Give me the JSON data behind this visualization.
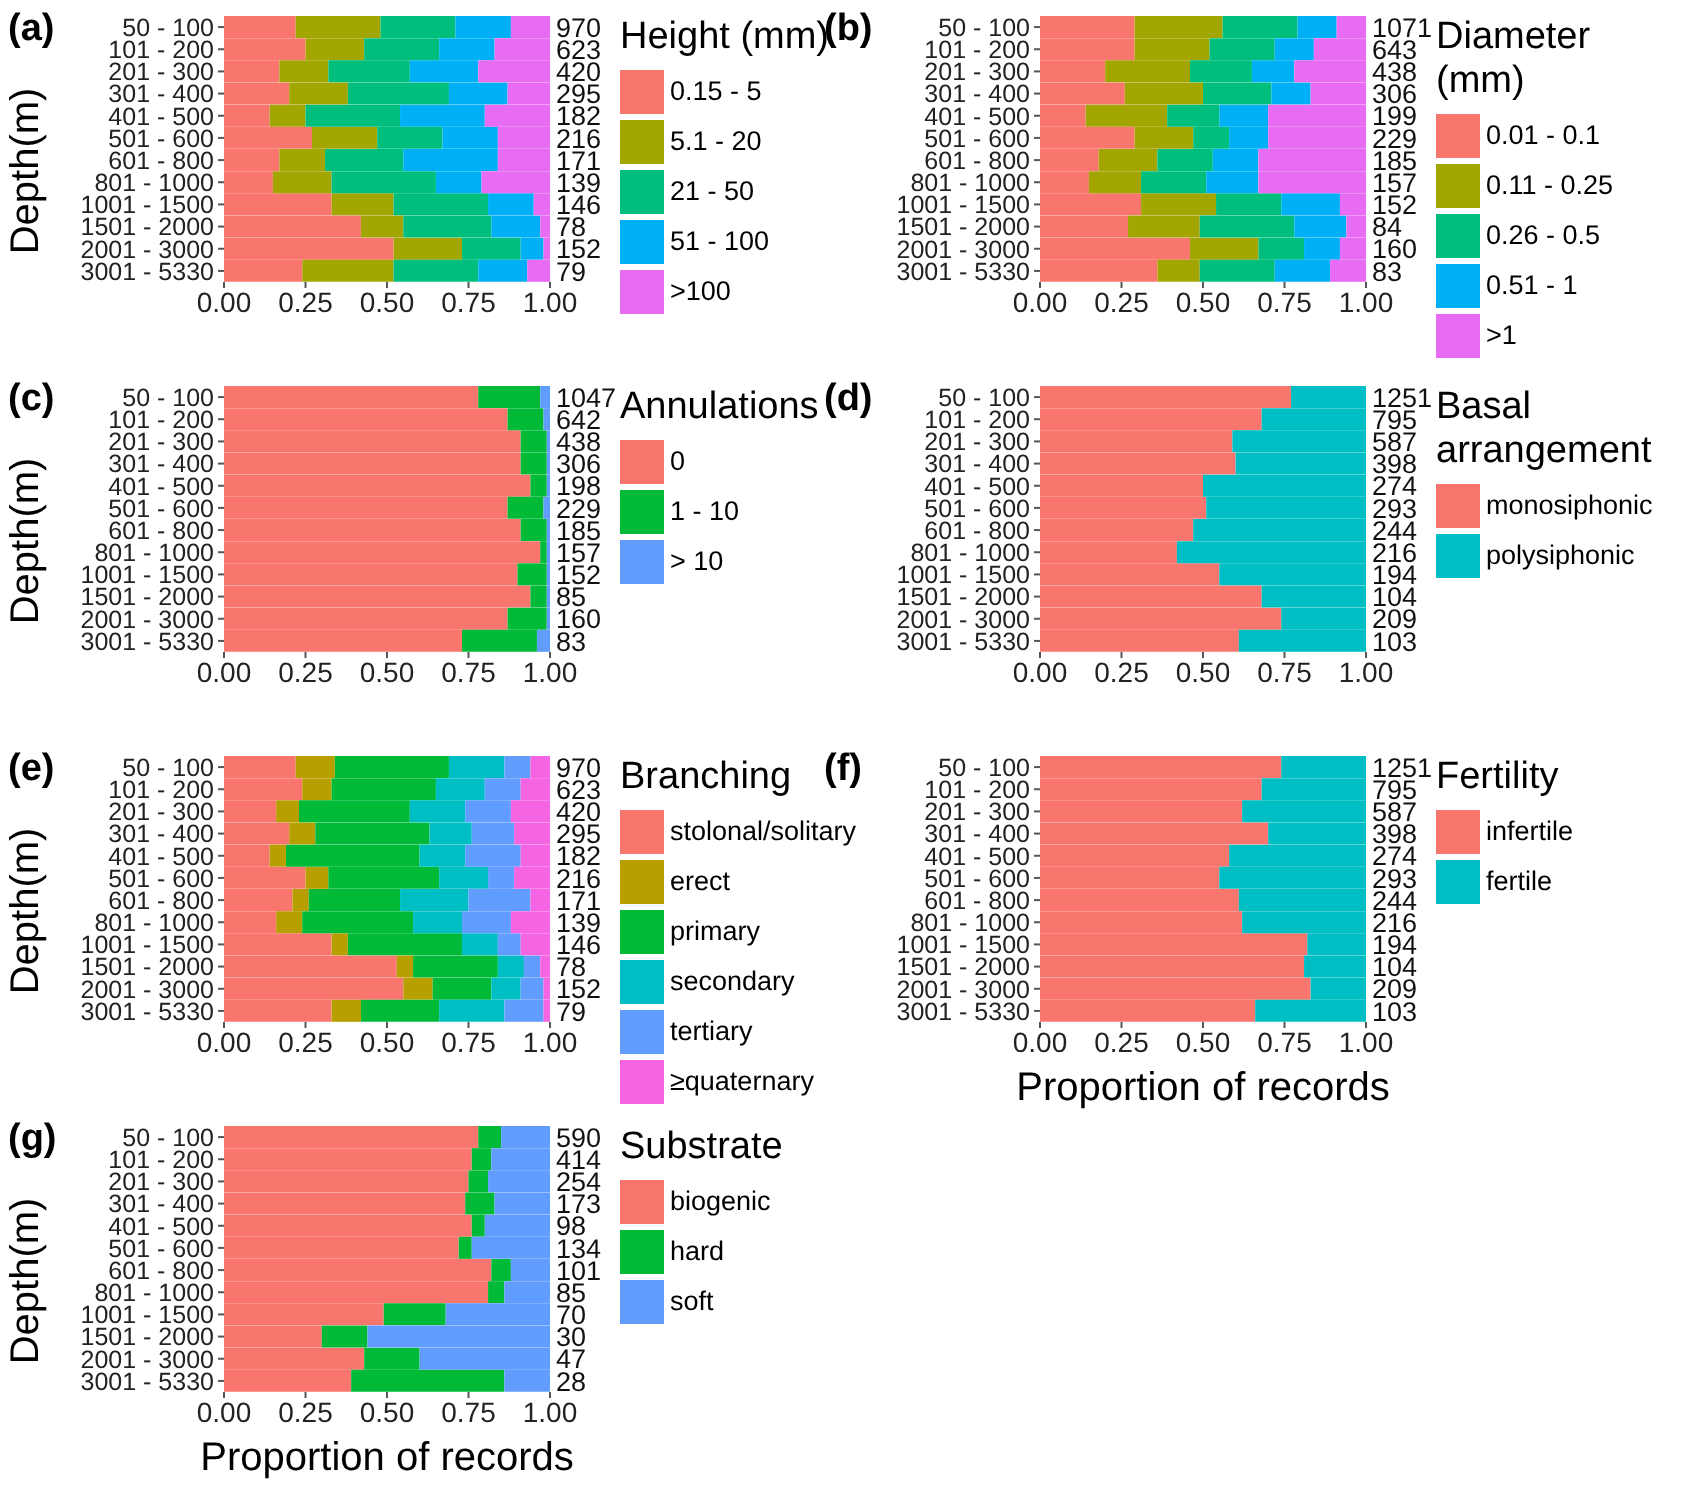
{
  "chart_data": [
    {
      "type": "bar",
      "orientation": "horizontal",
      "stacked": true,
      "title": "(a)",
      "ylabel": "Depth(m)",
      "legend_title": "Height (mm)",
      "legend": "right",
      "categories": [
        "50 - 100",
        "101 - 200",
        "201 - 300",
        "301 - 400",
        "401 - 500",
        "501 - 600",
        "601 - 800",
        "801 - 1000",
        "1001 - 1500",
        "1501 - 2000",
        "2001 - 3000",
        "3001 - 5330"
      ],
      "xlim": [
        0,
        1
      ],
      "xticks": [
        {
          "value": 0,
          "label": "0.00"
        },
        {
          "value": 0.25,
          "label": "0.25"
        },
        {
          "value": 0.5,
          "label": "0.50"
        },
        {
          "value": 0.75,
          "label": "0.75"
        },
        {
          "value": 1,
          "label": "1.00"
        }
      ],
      "annotations": [
        "970",
        "623",
        "420",
        "295",
        "182",
        "216",
        "171",
        "139",
        "146",
        "78",
        "152",
        "79"
      ],
      "series": [
        {
          "name": "0.15 - 5",
          "color": "#f8766d",
          "values": [
            0.22,
            0.25,
            0.17,
            0.2,
            0.14,
            0.27,
            0.17,
            0.15,
            0.33,
            0.42,
            0.52,
            0.24
          ]
        },
        {
          "name": "5.1 - 20",
          "color": "#a3a500",
          "values": [
            0.26,
            0.18,
            0.15,
            0.18,
            0.11,
            0.2,
            0.14,
            0.18,
            0.19,
            0.13,
            0.21,
            0.28
          ]
        },
        {
          "name": "21 - 50",
          "color": "#00bf7d",
          "values": [
            0.23,
            0.23,
            0.25,
            0.31,
            0.29,
            0.2,
            0.24,
            0.32,
            0.29,
            0.27,
            0.18,
            0.26
          ]
        },
        {
          "name": "51 - 100",
          "color": "#00b0f6",
          "values": [
            0.17,
            0.17,
            0.21,
            0.18,
            0.26,
            0.17,
            0.29,
            0.14,
            0.14,
            0.15,
            0.07,
            0.15
          ]
        },
        {
          "name": ">100",
          "color": "#e76bf3",
          "values": [
            0.12,
            0.17,
            0.22,
            0.13,
            0.2,
            0.16,
            0.16,
            0.21,
            0.05,
            0.03,
            0.02,
            0.07
          ]
        }
      ]
    },
    {
      "type": "bar",
      "orientation": "horizontal",
      "stacked": true,
      "title": "(b)",
      "legend_title": "Diameter (mm)",
      "legend": "right",
      "categories": [
        "50 - 100",
        "101 - 200",
        "201 - 300",
        "301 - 400",
        "401 - 500",
        "501 - 600",
        "601 - 800",
        "801 - 1000",
        "1001 - 1500",
        "1501 - 2000",
        "2001 - 3000",
        "3001 - 5330"
      ],
      "xlim": [
        0,
        1
      ],
      "xticks": [
        {
          "value": 0,
          "label": "0.00"
        },
        {
          "value": 0.25,
          "label": "0.25"
        },
        {
          "value": 0.5,
          "label": "0.50"
        },
        {
          "value": 0.75,
          "label": "0.75"
        },
        {
          "value": 1,
          "label": "1.00"
        }
      ],
      "annotations": [
        "1071",
        "643",
        "438",
        "306",
        "199",
        "229",
        "185",
        "157",
        "152",
        "84",
        "160",
        "83"
      ],
      "series": [
        {
          "name": "0.01 - 0.1",
          "color": "#f8766d",
          "values": [
            0.29,
            0.29,
            0.2,
            0.26,
            0.14,
            0.29,
            0.18,
            0.15,
            0.31,
            0.27,
            0.46,
            0.36
          ]
        },
        {
          "name": "0.11 - 0.25",
          "color": "#a3a500",
          "values": [
            0.27,
            0.23,
            0.26,
            0.24,
            0.25,
            0.18,
            0.18,
            0.16,
            0.23,
            0.22,
            0.21,
            0.13
          ]
        },
        {
          "name": "0.26 - 0.5",
          "color": "#00bf7d",
          "values": [
            0.23,
            0.2,
            0.19,
            0.21,
            0.16,
            0.11,
            0.17,
            0.2,
            0.2,
            0.29,
            0.14,
            0.23
          ]
        },
        {
          "name": "0.51 - 1",
          "color": "#00b0f6",
          "values": [
            0.12,
            0.12,
            0.13,
            0.12,
            0.15,
            0.12,
            0.14,
            0.16,
            0.18,
            0.16,
            0.11,
            0.17
          ]
        },
        {
          "name": ">1",
          "color": "#e76bf3",
          "values": [
            0.09,
            0.16,
            0.22,
            0.17,
            0.3,
            0.3,
            0.33,
            0.33,
            0.08,
            0.06,
            0.08,
            0.11
          ]
        }
      ]
    },
    {
      "type": "bar",
      "orientation": "horizontal",
      "stacked": true,
      "title": "(c)",
      "ylabel": "Depth(m)",
      "legend_title": "Annulations",
      "legend": "right",
      "categories": [
        "50 - 100",
        "101 - 200",
        "201 - 300",
        "301 - 400",
        "401 - 500",
        "501 - 600",
        "601 - 800",
        "801 - 1000",
        "1001 - 1500",
        "1501 - 2000",
        "2001 - 3000",
        "3001 - 5330"
      ],
      "xlim": [
        0,
        1
      ],
      "xticks": [
        {
          "value": 0,
          "label": "0.00"
        },
        {
          "value": 0.25,
          "label": "0.25"
        },
        {
          "value": 0.5,
          "label": "0.50"
        },
        {
          "value": 0.75,
          "label": "0.75"
        },
        {
          "value": 1,
          "label": "1.00"
        }
      ],
      "annotations": [
        "1047",
        "642",
        "438",
        "306",
        "198",
        "229",
        "185",
        "157",
        "152",
        "85",
        "160",
        "83"
      ],
      "series": [
        {
          "name": "0",
          "color": "#f8766d",
          "values": [
            0.78,
            0.87,
            0.91,
            0.91,
            0.94,
            0.87,
            0.91,
            0.97,
            0.9,
            0.94,
            0.87,
            0.73
          ]
        },
        {
          "name": "1 - 10",
          "color": "#00ba38",
          "values": [
            0.19,
            0.11,
            0.08,
            0.08,
            0.05,
            0.11,
            0.08,
            0.02,
            0.09,
            0.05,
            0.12,
            0.23
          ]
        },
        {
          "name": "> 10",
          "color": "#619cff",
          "values": [
            0.03,
            0.02,
            0.01,
            0.01,
            0.01,
            0.02,
            0.01,
            0.01,
            0.01,
            0.01,
            0.01,
            0.04
          ]
        }
      ]
    },
    {
      "type": "bar",
      "orientation": "horizontal",
      "stacked": true,
      "title": "(d)",
      "legend_title": "Basal arrangement",
      "legend": "right",
      "categories": [
        "50 - 100",
        "101 - 200",
        "201 - 300",
        "301 - 400",
        "401 - 500",
        "501 - 600",
        "601 - 800",
        "801 - 1000",
        "1001 - 1500",
        "1501 - 2000",
        "2001 - 3000",
        "3001 - 5330"
      ],
      "xlim": [
        0,
        1
      ],
      "xticks": [
        {
          "value": 0,
          "label": "0.00"
        },
        {
          "value": 0.25,
          "label": "0.25"
        },
        {
          "value": 0.5,
          "label": "0.50"
        },
        {
          "value": 0.75,
          "label": "0.75"
        },
        {
          "value": 1,
          "label": "1.00"
        }
      ],
      "annotations": [
        "1251",
        "795",
        "587",
        "398",
        "274",
        "293",
        "244",
        "216",
        "194",
        "104",
        "209",
        "103"
      ],
      "series": [
        {
          "name": "monosiphonic",
          "color": "#f8766d",
          "values": [
            0.77,
            0.68,
            0.59,
            0.6,
            0.5,
            0.51,
            0.47,
            0.42,
            0.55,
            0.68,
            0.74,
            0.61
          ]
        },
        {
          "name": "polysiphonic",
          "color": "#00bfc4",
          "values": [
            0.23,
            0.32,
            0.41,
            0.4,
            0.5,
            0.49,
            0.53,
            0.58,
            0.45,
            0.32,
            0.26,
            0.39
          ]
        }
      ]
    },
    {
      "type": "bar",
      "orientation": "horizontal",
      "stacked": true,
      "title": "(e)",
      "ylabel": "Depth(m)",
      "legend_title": "Branching",
      "legend": "right",
      "categories": [
        "50 - 100",
        "101 - 200",
        "201 - 300",
        "301 - 400",
        "401 - 500",
        "501 - 600",
        "601 - 800",
        "801 - 1000",
        "1001 - 1500",
        "1501 - 2000",
        "2001 - 3000",
        "3001 - 5330"
      ],
      "xlim": [
        0,
        1
      ],
      "xticks": [
        {
          "value": 0,
          "label": "0.00"
        },
        {
          "value": 0.25,
          "label": "0.25"
        },
        {
          "value": 0.5,
          "label": "0.50"
        },
        {
          "value": 0.75,
          "label": "0.75"
        },
        {
          "value": 1,
          "label": "1.00"
        }
      ],
      "annotations": [
        "970",
        "623",
        "420",
        "295",
        "182",
        "216",
        "171",
        "139",
        "146",
        "78",
        "152",
        "79"
      ],
      "series": [
        {
          "name": "stolonal/solitary",
          "color": "#f8766d",
          "values": [
            0.22,
            0.24,
            0.16,
            0.2,
            0.14,
            0.25,
            0.21,
            0.16,
            0.33,
            0.53,
            0.55,
            0.33
          ]
        },
        {
          "name": "erect",
          "color": "#b79f00",
          "values": [
            0.12,
            0.09,
            0.07,
            0.08,
            0.05,
            0.07,
            0.05,
            0.08,
            0.05,
            0.05,
            0.09,
            0.09
          ]
        },
        {
          "name": "primary",
          "color": "#00ba38",
          "values": [
            0.35,
            0.32,
            0.34,
            0.35,
            0.41,
            0.34,
            0.28,
            0.34,
            0.35,
            0.26,
            0.18,
            0.24
          ]
        },
        {
          "name": "secondary",
          "color": "#00bfc4",
          "values": [
            0.17,
            0.15,
            0.17,
            0.13,
            0.14,
            0.15,
            0.21,
            0.15,
            0.11,
            0.08,
            0.09,
            0.2
          ]
        },
        {
          "name": "tertiary",
          "color": "#619cff",
          "values": [
            0.08,
            0.11,
            0.14,
            0.13,
            0.17,
            0.08,
            0.19,
            0.15,
            0.07,
            0.05,
            0.07,
            0.12
          ]
        },
        {
          "name": "≥quaternary",
          "color": "#f564e3",
          "values": [
            0.06,
            0.09,
            0.12,
            0.11,
            0.09,
            0.11,
            0.06,
            0.12,
            0.09,
            0.03,
            0.02,
            0.02
          ]
        }
      ]
    },
    {
      "type": "bar",
      "orientation": "horizontal",
      "stacked": true,
      "title": "(f)",
      "xlabel": "Proportion of records",
      "legend_title": "Fertility",
      "legend": "right",
      "categories": [
        "50 - 100",
        "101 - 200",
        "201 - 300",
        "301 - 400",
        "401 - 500",
        "501 - 600",
        "601 - 800",
        "801 - 1000",
        "1001 - 1500",
        "1501 - 2000",
        "2001 - 3000",
        "3001 - 5330"
      ],
      "xlim": [
        0,
        1
      ],
      "xticks": [
        {
          "value": 0,
          "label": "0.00"
        },
        {
          "value": 0.25,
          "label": "0.25"
        },
        {
          "value": 0.5,
          "label": "0.50"
        },
        {
          "value": 0.75,
          "label": "0.75"
        },
        {
          "value": 1,
          "label": "1.00"
        }
      ],
      "annotations": [
        "1251",
        "795",
        "587",
        "398",
        "274",
        "293",
        "244",
        "216",
        "194",
        "104",
        "209",
        "103"
      ],
      "series": [
        {
          "name": "infertile",
          "color": "#f8766d",
          "values": [
            0.74,
            0.68,
            0.62,
            0.7,
            0.58,
            0.55,
            0.61,
            0.62,
            0.82,
            0.81,
            0.83,
            0.66
          ]
        },
        {
          "name": "fertile",
          "color": "#00bfc4",
          "values": [
            0.26,
            0.32,
            0.38,
            0.3,
            0.42,
            0.45,
            0.39,
            0.38,
            0.18,
            0.19,
            0.17,
            0.34
          ]
        }
      ]
    },
    {
      "type": "bar",
      "orientation": "horizontal",
      "stacked": true,
      "title": "(g)",
      "ylabel": "Depth(m)",
      "xlabel": "Proportion of records",
      "legend_title": "Substrate",
      "legend": "right",
      "categories": [
        "50 - 100",
        "101 - 200",
        "201 - 300",
        "301 - 400",
        "401 - 500",
        "501 - 600",
        "601 - 800",
        "801 - 1000",
        "1001 - 1500",
        "1501 - 2000",
        "2001 - 3000",
        "3001 - 5330"
      ],
      "xlim": [
        0,
        1
      ],
      "xticks": [
        {
          "value": 0,
          "label": "0.00"
        },
        {
          "value": 0.25,
          "label": "0.25"
        },
        {
          "value": 0.5,
          "label": "0.50"
        },
        {
          "value": 0.75,
          "label": "0.75"
        },
        {
          "value": 1,
          "label": "1.00"
        }
      ],
      "annotations": [
        "590",
        "414",
        "254",
        "173",
        "98",
        "134",
        "101",
        "85",
        "70",
        "30",
        "47",
        "28"
      ],
      "series": [
        {
          "name": "biogenic",
          "color": "#f8766d",
          "values": [
            0.78,
            0.76,
            0.75,
            0.74,
            0.76,
            0.72,
            0.82,
            0.81,
            0.49,
            0.3,
            0.43,
            0.39
          ]
        },
        {
          "name": "hard",
          "color": "#00ba38",
          "values": [
            0.07,
            0.06,
            0.06,
            0.09,
            0.04,
            0.04,
            0.06,
            0.05,
            0.19,
            0.14,
            0.17,
            0.47
          ]
        },
        {
          "name": "soft",
          "color": "#619cff",
          "values": [
            0.15,
            0.18,
            0.19,
            0.17,
            0.2,
            0.24,
            0.12,
            0.14,
            0.32,
            0.56,
            0.4,
            0.14
          ]
        }
      ]
    }
  ]
}
